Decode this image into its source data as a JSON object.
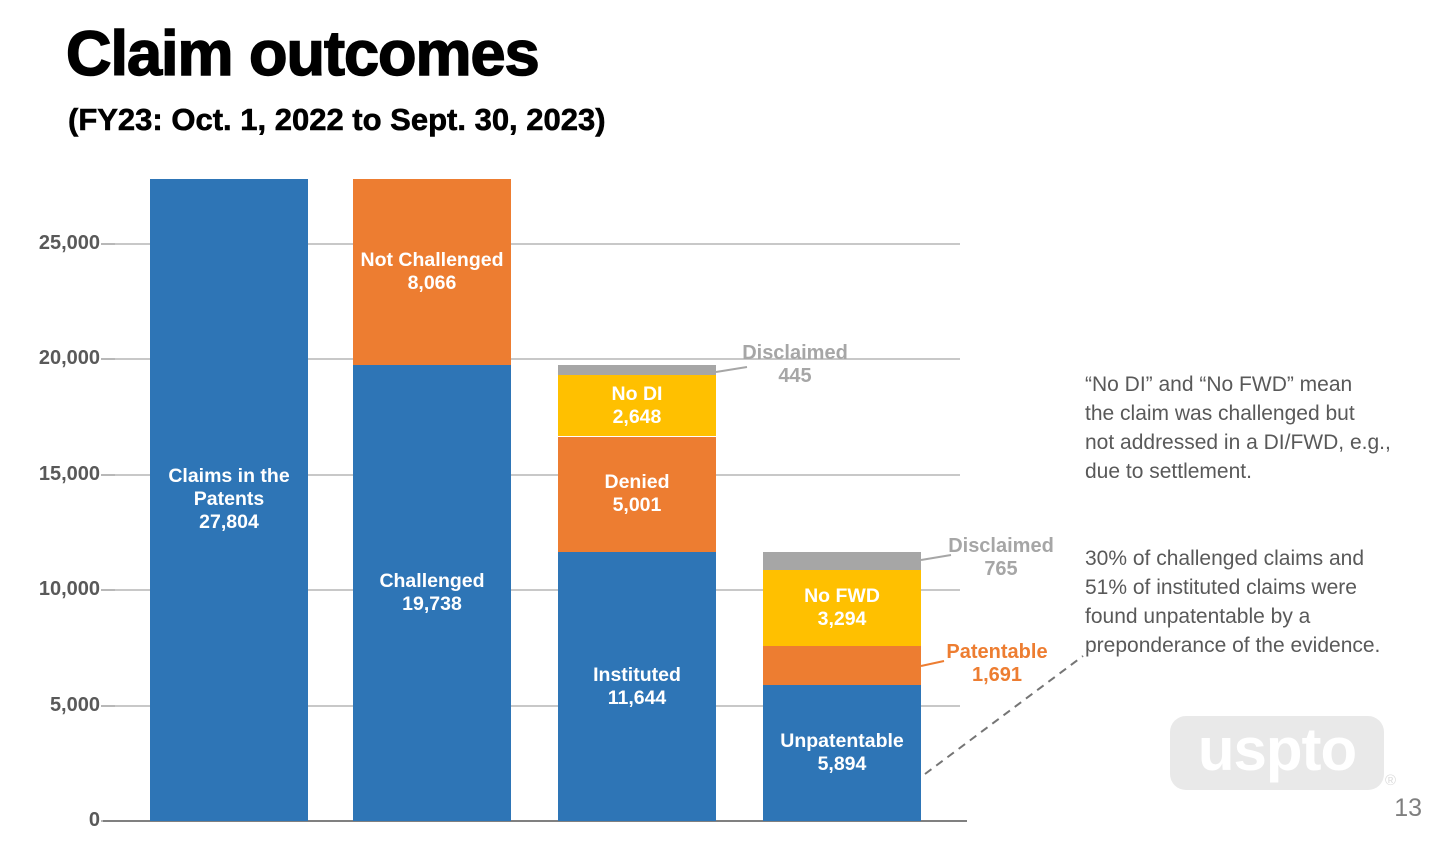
{
  "slide": {
    "title": "Claim outcomes",
    "subtitle": "(FY23: Oct. 1, 2022 to Sept. 30, 2023)",
    "page_number": "13",
    "logo_text": "uspto",
    "logo_registered_mark": "®"
  },
  "colors": {
    "blue": "#2E75B6",
    "orange": "#ED7D31",
    "yellow": "#FFC000",
    "gray": "#A6A6A6",
    "gridline": "#C8C8C8",
    "axis_line": "#808080",
    "axis_text": "#595959",
    "annotation_text": "#595959",
    "callout_gray_text": "#A6A6A6",
    "callout_orange_text": "#ED7D31",
    "dashed_line": "#757575",
    "logo_background": "#E9E9E9",
    "page_number_text": "#7F7F7F"
  },
  "chart_data": {
    "type": "bar",
    "subtype": "stacked",
    "title": "Claim outcomes",
    "subtitle": "(FY23: Oct. 1, 2022 to Sept. 30, 2023)",
    "ylim": [
      0,
      27804
    ],
    "yticks": [
      0,
      5000,
      10000,
      15000,
      20000,
      25000
    ],
    "ytick_labels": [
      "0",
      "5,000",
      "10,000",
      "15,000",
      "20,000",
      "25,000"
    ],
    "grid": true,
    "legend": "none",
    "bars": [
      {
        "segments": [
          {
            "label": "Claims in the Patents",
            "label_lines": [
              "Claims in the",
              "Patents"
            ],
            "value": 27804,
            "value_display": "27,804",
            "color": "blue",
            "label_placement": "inside"
          }
        ]
      },
      {
        "segments": [
          {
            "label": "Challenged",
            "label_lines": [
              "Challenged"
            ],
            "value": 19738,
            "value_display": "19,738",
            "color": "blue",
            "label_placement": "inside"
          },
          {
            "label": "Not Challenged",
            "label_lines": [
              "Not Challenged"
            ],
            "value": 8066,
            "value_display": "8,066",
            "color": "orange",
            "label_placement": "inside"
          }
        ]
      },
      {
        "segments": [
          {
            "label": "Instituted",
            "label_lines": [
              "Instituted"
            ],
            "value": 11644,
            "value_display": "11,644",
            "color": "blue",
            "label_placement": "inside"
          },
          {
            "label": "Denied",
            "label_lines": [
              "Denied"
            ],
            "value": 5001,
            "value_display": "5,001",
            "color": "orange",
            "label_placement": "inside"
          },
          {
            "label": "No DI",
            "label_lines": [
              "No DI"
            ],
            "value": 2648,
            "value_display": "2,648",
            "color": "yellow",
            "label_placement": "inside"
          },
          {
            "label": "Disclaimed",
            "label_lines": [],
            "value": 445,
            "value_display": "445",
            "color": "gray",
            "label_placement": "outside"
          }
        ]
      },
      {
        "segments": [
          {
            "label": "Unpatentable",
            "label_lines": [
              "Unpatentable"
            ],
            "value": 5894,
            "value_display": "5,894",
            "color": "blue",
            "label_placement": "inside"
          },
          {
            "label": "Patentable",
            "label_lines": [],
            "value": 1691,
            "value_display": "1,691",
            "color": "orange",
            "label_placement": "outside"
          },
          {
            "label": "No FWD",
            "label_lines": [
              "No FWD"
            ],
            "value": 3294,
            "value_display": "3,294",
            "color": "yellow",
            "label_placement": "inside"
          },
          {
            "label": "Disclaimed",
            "label_lines": [],
            "value": 765,
            "value_display": "765",
            "color": "gray",
            "label_placement": "outside"
          }
        ]
      }
    ]
  },
  "callouts": {
    "disclaimed_445": {
      "label": "Disclaimed",
      "value": "445"
    },
    "disclaimed_765": {
      "label": "Disclaimed",
      "value": "765"
    },
    "patentable_1691": {
      "label": "Patentable",
      "value": "1,691"
    }
  },
  "annotations": {
    "note1": {
      "lines": [
        "“No DI” and “No FWD” mean",
        "the claim was challenged but",
        "not addressed in a DI/FWD, e.g.,",
        "due to settlement."
      ]
    },
    "note2": {
      "lines": [
        "30% of challenged claims and",
        "51% of instituted claims were",
        "found unpatentable by a",
        "preponderance of the evidence."
      ]
    }
  }
}
